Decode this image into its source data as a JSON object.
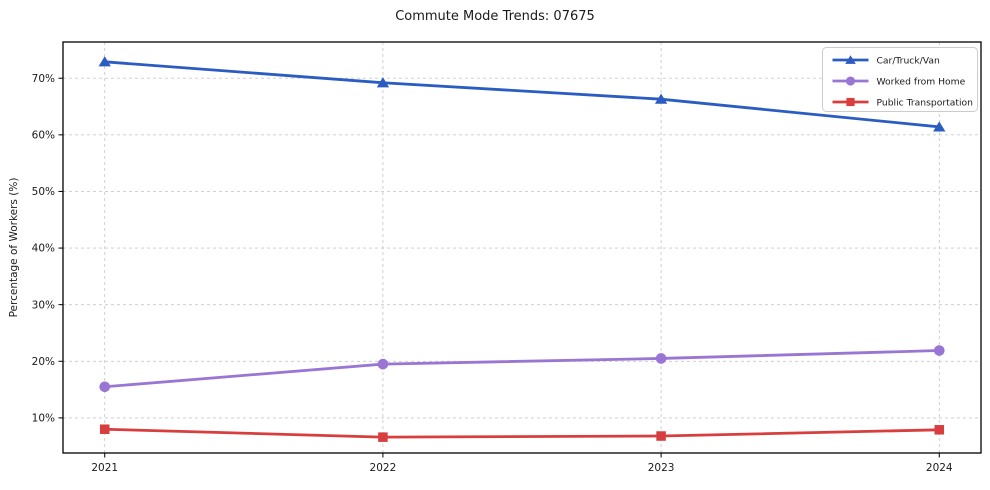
{
  "chart_data": {
    "type": "line",
    "title": "Commute Mode Trends: 07675",
    "xlabel": "",
    "ylabel": "Percentage of Workers (%)",
    "x": [
      2021,
      2022,
      2023,
      2024
    ],
    "categories": [
      "2021",
      "2022",
      "2023",
      "2024"
    ],
    "series": [
      {
        "name": "Car/Truck/Van",
        "marker": "triangle",
        "color": "#2b5cc2",
        "values": [
          72.9,
          69.2,
          66.3,
          61.4
        ]
      },
      {
        "name": "Worked from Home",
        "marker": "circle",
        "color": "#9a76d4",
        "values": [
          15.5,
          19.5,
          20.5,
          21.9
        ]
      },
      {
        "name": "Public Transportation",
        "marker": "square",
        "color": "#d93e3e",
        "values": [
          8.0,
          6.6,
          6.8,
          7.9
        ]
      }
    ],
    "yticks": [
      10,
      20,
      30,
      40,
      50,
      60,
      70
    ],
    "ytick_labels": [
      "10%",
      "20%",
      "30%",
      "40%",
      "50%",
      "60%",
      "70%"
    ],
    "xlim": [
      2020.85,
      2024.15
    ],
    "ylim": [
      3.8,
      76.4
    ],
    "grid": true,
    "grid_style": "dashed",
    "grid_color": "#c9c9c9",
    "frame_color": "#000000",
    "background_color": "#ffffff",
    "legend_position": "top-right"
  }
}
